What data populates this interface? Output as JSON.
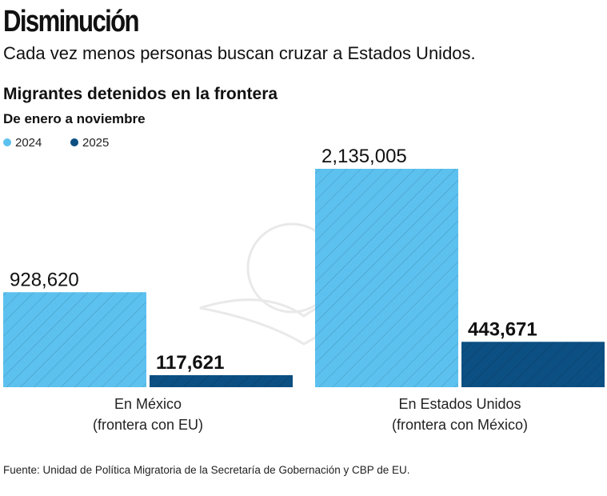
{
  "title": "Disminución",
  "subtitle": "Cada vez menos personas buscan cruzar a Estados Unidos.",
  "source": "Fuente: Unidad de Política Migratoria de la Secretaría de Gobernación y CBP de EU.",
  "chart_data": {
    "type": "bar",
    "title": "Migrantes detenidos en la frontera",
    "subtitle": "De enero a noviembre",
    "categories": [
      [
        "En México",
        "(frontera con EU)"
      ],
      [
        "En Estados Unidos",
        "(frontera con México)"
      ]
    ],
    "series": [
      {
        "name": "2024",
        "color": "#5cc1ef",
        "values": [
          928620,
          2135005
        ],
        "labels": [
          "928,620",
          "2,135,005"
        ]
      },
      {
        "name": "2025",
        "color": "#0c4f82",
        "values": [
          117621,
          443671
        ],
        "labels": [
          "117,621",
          "443,671"
        ]
      }
    ],
    "legend": "top-left",
    "grid": false,
    "ylim": [
      0,
      2135005
    ]
  }
}
